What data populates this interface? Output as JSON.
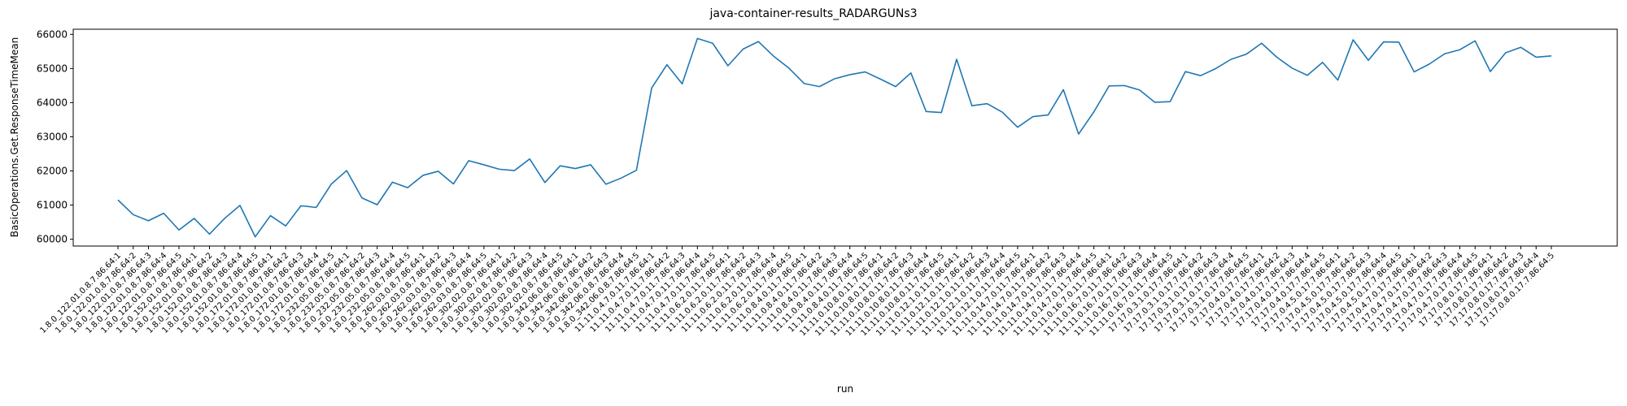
{
  "chart_data": {
    "type": "line",
    "title": "java-container-results_RADARGUNs3",
    "xlabel": "run",
    "ylabel": "BasicOperations.Get.ResponseTimeMean",
    "ylim": [
      59800,
      66150
    ],
    "yticks": [
      60000,
      61000,
      62000,
      63000,
      64000,
      65000,
      66000
    ],
    "grid": false,
    "line_color": "#1f77b4",
    "categories": [
      "1.8.0_122.01.0.8.7.86.64:1",
      "1.8.0_122.01.0.8.7.86.64:2",
      "1.8.0_122.01.0.8.7.86.64:3",
      "1.8.0_122.01.0.8.7.86.64:4",
      "1.8.0_122.01.0.8.7.86.64:5",
      "1.8.0_152.01.0.8.7.86.64:1",
      "1.8.0_152.01.0.8.7.86.64:2",
      "1.8.0_152.01.0.8.7.86.64:3",
      "1.8.0_152.01.0.8.7.86.64:4",
      "1.8.0_152.01.0.8.7.86.64:5",
      "1.8.0_172.01.0.8.7.86.64:1",
      "1.8.0_172.01.0.8.7.86.64:2",
      "1.8.0_172.01.0.8.7.86.64:3",
      "1.8.0_172.01.0.8.7.86.64:4",
      "1.8.0_172.01.0.8.7.86.64:5",
      "1.8.0_232.05.0.8.7.86.64:1",
      "1.8.0_232.05.0.8.7.86.64:2",
      "1.8.0_232.05.0.8.7.86.64:3",
      "1.8.0_232.05.0.8.7.86.64:4",
      "1.8.0_232.05.0.8.7.86.64:5",
      "1.8.0_262.03.0.8.7.86.64:1",
      "1.8.0_262.03.0.8.7.86.64:2",
      "1.8.0_262.03.0.8.7.86.64:3",
      "1.8.0_262.03.0.8.7.86.64:4",
      "1.8.0_262.03.0.8.7.86.64:5",
      "1.8.0_302.02.0.8.7.86.64:1",
      "1.8.0_302.02.0.8.7.86.64:2",
      "1.8.0_302.02.0.8.7.86.64:3",
      "1.8.0_302.02.0.8.7.86.64:4",
      "1.8.0_302.02.0.8.7.86.64:5",
      "1.8.0_342.06.0.8.7.86.64:1",
      "1.8.0_342.06.0.8.7.86.64:2",
      "1.8.0_342.06.0.8.7.86.64:3",
      "1.8.0_342.06.0.8.7.86.64:4",
      "1.8.0_342.06.0.8.7.86.64:5",
      "11.11.0.4.7.0.11.7.86.64:1",
      "11.11.0.4.7.0.11.7.86.64:2",
      "11.11.0.4.7.0.11.7.86.64:3",
      "11.11.0.4.7.0.11.7.86.64:4",
      "11.11.0.4.7.0.11.7.86.64:5",
      "11.11.0.6.2.0.11.7.86.64:1",
      "11.11.0.6.2.0.11.7.86.64:2",
      "11.11.0.6.2.0.11.7.86.64:3",
      "11.11.0.6.2.0.11.7.86.64:4",
      "11.11.0.6.2.0.11.7.86.64:5",
      "11.11.0.8.4.0.11.7.86.64:1",
      "11.11.0.8.4.0.11.7.86.64:2",
      "11.11.0.8.4.0.11.7.86.64:3",
      "11.11.0.8.4.0.11.7.86.64:4",
      "11.11.0.8.4.0.11.7.86.64:5",
      "11.11.0.10.8.0.11.7.86.64:1",
      "11.11.0.10.8.0.11.7.86.64:2",
      "11.11.0.10.8.0.11.7.86.64:3",
      "11.11.0.10.8.0.11.7.86.64:4",
      "11.11.0.10.8.0.11.7.86.64:5",
      "11.11.0.12.1.0.11.7.86.64:1",
      "11.11.0.12.1.0.11.7.86.64:2",
      "11.11.0.12.1.0.11.7.86.64:3",
      "11.11.0.12.1.0.11.7.86.64:4",
      "11.11.0.12.1.0.11.7.86.64:5",
      "11.11.0.14.7.0.11.7.86.64:1",
      "11.11.0.14.7.0.11.7.86.64:2",
      "11.11.0.14.7.0.11.7.86.64:3",
      "11.11.0.14.7.0.11.7.86.64:4",
      "11.11.0.14.7.0.11.7.86.64:5",
      "11.11.0.16.7.0.11.7.86.64:1",
      "11.11.0.16.7.0.11.7.86.64:2",
      "11.11.0.16.7.0.11.7.86.64:3",
      "11.11.0.16.7.0.11.7.86.64:4",
      "11.11.0.16.7.0.11.7.86.64:5",
      "17.17.0.3.1.0.17.7.86.64:1",
      "17.17.0.3.1.0.17.7.86.64:2",
      "17.17.0.3.1.0.17.7.86.64:3",
      "17.17.0.3.1.0.17.7.86.64:4",
      "17.17.0.3.1.0.17.7.86.64:5",
      "17.17.0.4.0.17.7.86.64:1",
      "17.17.0.4.0.17.7.86.64:2",
      "17.17.0.4.0.17.7.86.64:3",
      "17.17.0.4.0.17.7.86.64:4",
      "17.17.0.4.0.17.7.86.64:5",
      "17.17.0.4.5.0.17.7.86.64:1",
      "17.17.0.4.5.0.17.7.86.64:2",
      "17.17.0.4.5.0.17.7.86.64:3",
      "17.17.0.4.5.0.17.7.86.64:4",
      "17.17.0.4.5.0.17.7.86.64:5",
      "17.17.0.4.7.0.17.7.86.64:1",
      "17.17.0.4.7.0.17.7.86.64:2",
      "17.17.0.4.7.0.17.7.86.64:3",
      "17.17.0.4.7.0.17.7.86.64:4",
      "17.17.0.4.7.0.17.7.86.64:5",
      "17.17.0.8.0.17.7.86.64:1",
      "17.17.0.8.0.17.7.86.64:2",
      "17.17.0.8.0.17.7.86.64:3",
      "17.17.0.8.0.17.7.86.64:4",
      "17.17.0.8.0.17.7.86.64:5"
    ],
    "series": [
      {
        "values": [
          61150,
          60720,
          60540,
          60760,
          60270,
          60610,
          60150,
          60610,
          60990,
          60070,
          60690,
          60390,
          60980,
          60930,
          61620,
          62010,
          61210,
          61010,
          61670,
          61510,
          61870,
          61990,
          61620,
          62300,
          62180,
          62050,
          62010,
          62350,
          61660,
          62150,
          62070,
          62180,
          61610,
          61790,
          62020,
          64430,
          65110,
          64550,
          65880,
          65740,
          65080,
          65570,
          65790,
          65360,
          65010,
          64560,
          64470,
          64700,
          64820,
          64900,
          64690,
          64470,
          64870,
          63740,
          63710,
          65270,
          63910,
          63970,
          63720,
          63280,
          63590,
          63640,
          64380,
          63080,
          63730,
          64490,
          64500,
          64370,
          64010,
          64030,
          64910,
          64790,
          65000,
          65270,
          65420,
          65740,
          65330,
          65010,
          64800,
          65180,
          64660,
          65840,
          65240,
          65780,
          65770,
          64900,
          65130,
          65430,
          65550,
          65810,
          64910,
          65460,
          65620,
          65330,
          65370
        ]
      }
    ]
  }
}
